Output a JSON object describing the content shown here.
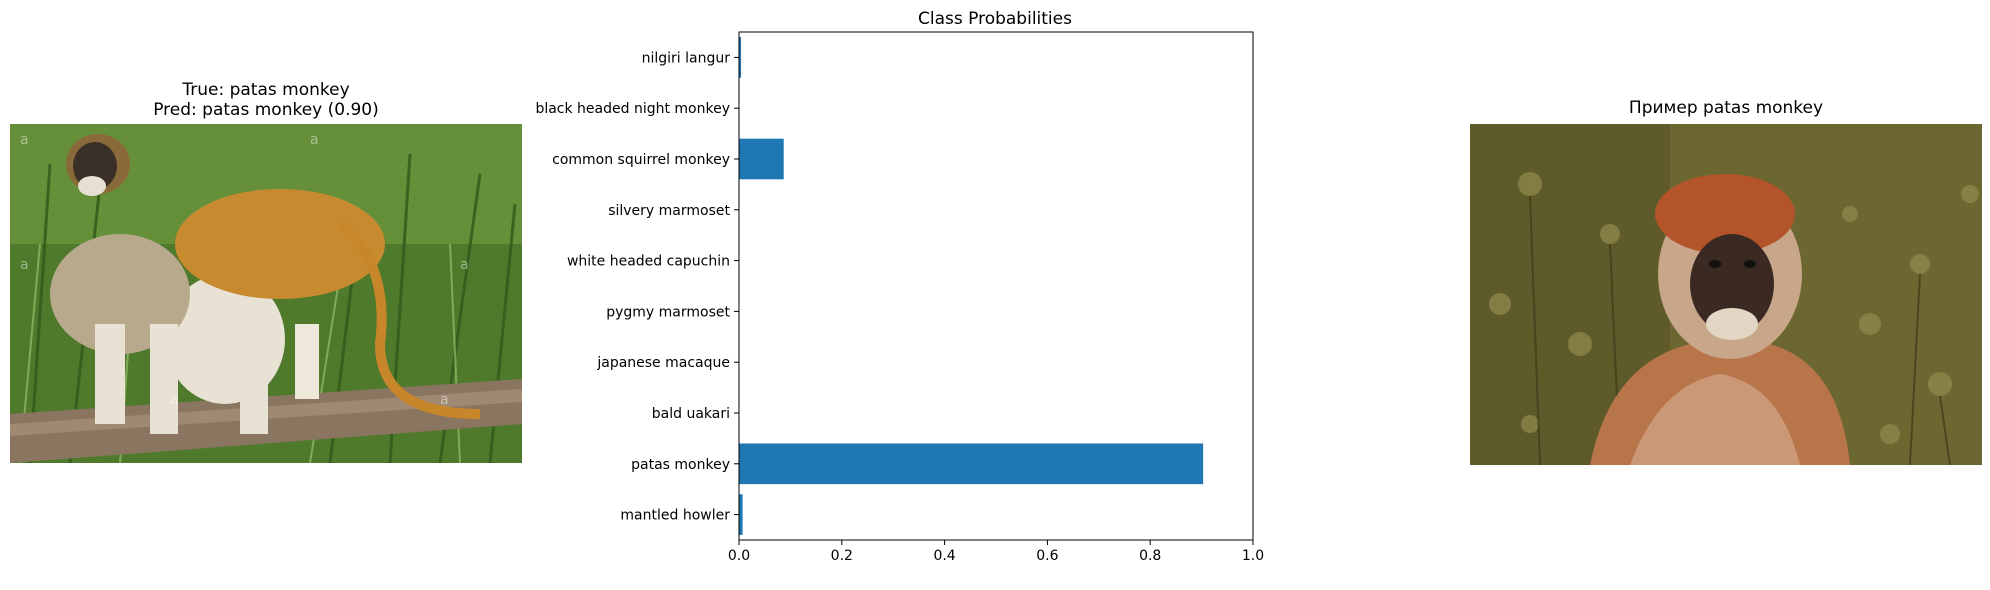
{
  "left_panel": {
    "title_line1": "True: patas monkey",
    "title_line2": "Pred: patas monkey (0.90)"
  },
  "right_panel": {
    "title": "Пример patas monkey"
  },
  "chart_data": {
    "type": "bar",
    "orientation": "horizontal",
    "title": "Class Probabilities",
    "categories": [
      "mantled howler",
      "patas monkey",
      "bald uakari",
      "japanese macaque",
      "pygmy marmoset",
      "white headed capuchin",
      "silvery marmoset",
      "common squirrel monkey",
      "black headed night monkey",
      "nilgiri langur"
    ],
    "values": [
      0.007,
      0.903,
      0.0005,
      0.0005,
      0.0005,
      0.0005,
      0.0005,
      0.087,
      0.0005,
      0.004
    ],
    "xlim": [
      0,
      1.0
    ],
    "xticks": [
      "0.0",
      "0.2",
      "0.4",
      "0.6",
      "0.8",
      "1.0"
    ],
    "grid": false,
    "bar_color": "#1f77b4"
  }
}
